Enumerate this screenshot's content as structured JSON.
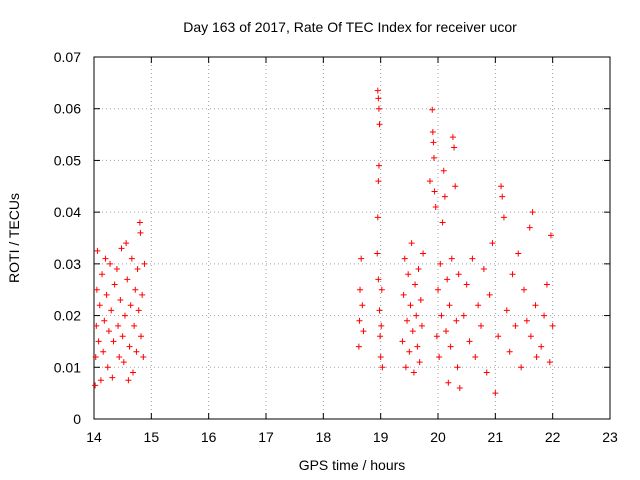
{
  "chart_data": {
    "type": "scatter",
    "title": "Day 163 of 2017, Rate Of TEC Index for receiver ucor",
    "xlabel": "GPS time / hours",
    "ylabel": "ROTI / TECUs",
    "xlim": [
      14,
      23
    ],
    "ylim": [
      0,
      0.07
    ],
    "xticks": [
      "14",
      "15",
      "16",
      "17",
      "18",
      "19",
      "20",
      "21",
      "22",
      "23"
    ],
    "yticks": [
      "0",
      "0.01",
      "0.02",
      "0.03",
      "0.04",
      "0.05",
      "0.06",
      "0.07"
    ],
    "grid": true,
    "marker": "+",
    "marker_color": "#ff0000",
    "series": [
      {
        "name": "ROTI",
        "points": [
          [
            14.02,
            0.0065
          ],
          [
            14.03,
            0.012
          ],
          [
            14.04,
            0.018
          ],
          [
            14.05,
            0.025
          ],
          [
            14.06,
            0.0325
          ],
          [
            14.08,
            0.015
          ],
          [
            14.1,
            0.022
          ],
          [
            14.12,
            0.0075
          ],
          [
            14.14,
            0.028
          ],
          [
            14.16,
            0.013
          ],
          [
            14.18,
            0.019
          ],
          [
            14.2,
            0.031
          ],
          [
            14.22,
            0.024
          ],
          [
            14.24,
            0.01
          ],
          [
            14.26,
            0.017
          ],
          [
            14.28,
            0.03
          ],
          [
            14.3,
            0.021
          ],
          [
            14.32,
            0.008
          ],
          [
            14.34,
            0.015
          ],
          [
            14.36,
            0.026
          ],
          [
            14.4,
            0.029
          ],
          [
            14.42,
            0.018
          ],
          [
            14.44,
            0.012
          ],
          [
            14.46,
            0.023
          ],
          [
            14.48,
            0.033
          ],
          [
            14.5,
            0.016
          ],
          [
            14.52,
            0.011
          ],
          [
            14.54,
            0.02
          ],
          [
            14.56,
            0.034
          ],
          [
            14.58,
            0.027
          ],
          [
            14.6,
            0.0075
          ],
          [
            14.62,
            0.014
          ],
          [
            14.64,
            0.022
          ],
          [
            14.66,
            0.031
          ],
          [
            14.68,
            0.009
          ],
          [
            14.7,
            0.018
          ],
          [
            14.72,
            0.025
          ],
          [
            14.74,
            0.013
          ],
          [
            14.76,
            0.029
          ],
          [
            14.78,
            0.021
          ],
          [
            14.8,
            0.038
          ],
          [
            14.81,
            0.036
          ],
          [
            14.82,
            0.016
          ],
          [
            14.84,
            0.024
          ],
          [
            14.86,
            0.012
          ],
          [
            14.88,
            0.03
          ],
          [
            18.62,
            0.014
          ],
          [
            18.63,
            0.019
          ],
          [
            18.64,
            0.025
          ],
          [
            18.66,
            0.031
          ],
          [
            18.68,
            0.022
          ],
          [
            18.7,
            0.017
          ],
          [
            18.95,
            0.0635
          ],
          [
            18.96,
            0.062
          ],
          [
            18.97,
            0.06
          ],
          [
            18.98,
            0.057
          ],
          [
            18.97,
            0.049
          ],
          [
            18.96,
            0.046
          ],
          [
            18.95,
            0.039
          ],
          [
            18.94,
            0.032
          ],
          [
            18.96,
            0.027
          ],
          [
            18.98,
            0.021
          ],
          [
            18.99,
            0.016
          ],
          [
            19.0,
            0.012
          ],
          [
            19.01,
            0.018
          ],
          [
            19.02,
            0.025
          ],
          [
            19.03,
            0.01
          ],
          [
            19.38,
            0.015
          ],
          [
            19.4,
            0.024
          ],
          [
            19.42,
            0.031
          ],
          [
            19.44,
            0.01
          ],
          [
            19.46,
            0.019
          ],
          [
            19.48,
            0.028
          ],
          [
            19.5,
            0.013
          ],
          [
            19.52,
            0.022
          ],
          [
            19.54,
            0.034
          ],
          [
            19.56,
            0.017
          ],
          [
            19.58,
            0.009
          ],
          [
            19.6,
            0.026
          ],
          [
            19.62,
            0.02
          ],
          [
            19.64,
            0.014
          ],
          [
            19.66,
            0.029
          ],
          [
            19.68,
            0.011
          ],
          [
            19.7,
            0.023
          ],
          [
            19.72,
            0.018
          ],
          [
            19.74,
            0.032
          ],
          [
            19.86,
            0.046
          ],
          [
            19.9,
            0.0598
          ],
          [
            19.91,
            0.0555
          ],
          [
            19.92,
            0.0535
          ],
          [
            19.93,
            0.0505
          ],
          [
            19.94,
            0.044
          ],
          [
            19.96,
            0.041
          ],
          [
            19.98,
            0.016
          ],
          [
            20.0,
            0.025
          ],
          [
            20.02,
            0.012
          ],
          [
            20.04,
            0.03
          ],
          [
            20.06,
            0.02
          ],
          [
            20.08,
            0.038
          ],
          [
            20.1,
            0.048
          ],
          [
            20.12,
            0.043
          ],
          [
            20.14,
            0.017
          ],
          [
            20.16,
            0.027
          ],
          [
            20.18,
            0.007
          ],
          [
            20.2,
            0.022
          ],
          [
            20.22,
            0.014
          ],
          [
            20.24,
            0.031
          ],
          [
            20.26,
            0.0545
          ],
          [
            20.28,
            0.0525
          ],
          [
            20.3,
            0.045
          ],
          [
            20.32,
            0.019
          ],
          [
            20.34,
            0.01
          ],
          [
            20.36,
            0.028
          ],
          [
            20.38,
            0.006
          ],
          [
            20.45,
            0.02
          ],
          [
            20.5,
            0.026
          ],
          [
            20.55,
            0.015
          ],
          [
            20.6,
            0.031
          ],
          [
            20.65,
            0.012
          ],
          [
            20.7,
            0.022
          ],
          [
            20.75,
            0.018
          ],
          [
            20.8,
            0.029
          ],
          [
            20.85,
            0.009
          ],
          [
            20.9,
            0.024
          ],
          [
            20.95,
            0.034
          ],
          [
            21.0,
            0.005
          ],
          [
            21.05,
            0.016
          ],
          [
            21.1,
            0.045
          ],
          [
            21.12,
            0.043
          ],
          [
            21.15,
            0.039
          ],
          [
            21.2,
            0.021
          ],
          [
            21.25,
            0.013
          ],
          [
            21.3,
            0.028
          ],
          [
            21.35,
            0.018
          ],
          [
            21.4,
            0.032
          ],
          [
            21.45,
            0.01
          ],
          [
            21.5,
            0.025
          ],
          [
            21.55,
            0.019
          ],
          [
            21.6,
            0.037
          ],
          [
            21.62,
            0.016
          ],
          [
            21.65,
            0.04
          ],
          [
            21.7,
            0.022
          ],
          [
            21.72,
            0.012
          ],
          [
            21.8,
            0.014
          ],
          [
            21.85,
            0.02
          ],
          [
            21.9,
            0.026
          ],
          [
            21.95,
            0.011
          ],
          [
            21.97,
            0.0355
          ],
          [
            22.0,
            0.018
          ]
        ]
      }
    ]
  }
}
